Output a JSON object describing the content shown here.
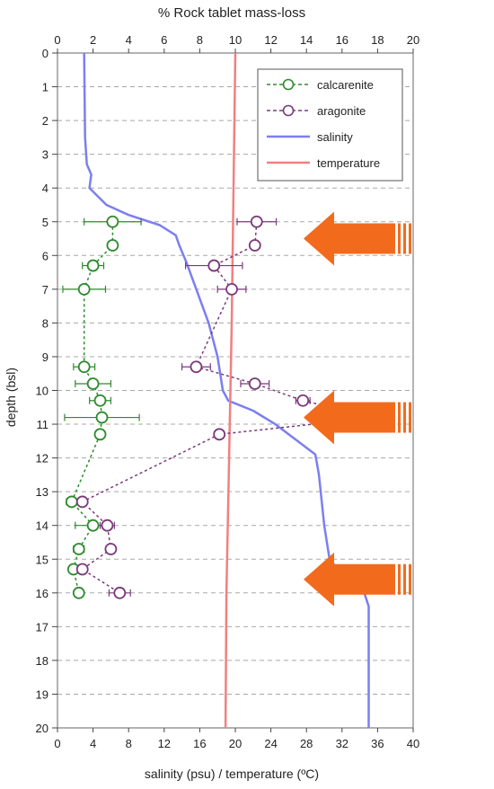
{
  "chart_data": {
    "type": "scatter",
    "top_axis": {
      "label": "% Rock tablet mass-loss",
      "range": [
        0,
        20
      ],
      "ticks": [
        "0",
        "2",
        "4",
        "6",
        "8",
        "10",
        "12",
        "14",
        "16",
        "18",
        "20"
      ]
    },
    "bottom_axis": {
      "label": "salinity (psu) / temperature (ºC)",
      "range": [
        0,
        40
      ],
      "ticks": [
        "0",
        "4",
        "8",
        "12",
        "16",
        "20",
        "24",
        "28",
        "32",
        "36",
        "40"
      ]
    },
    "y_axis": {
      "label": "depth (bsl)",
      "range": [
        0,
        20
      ],
      "reversed": true,
      "ticks": [
        "0",
        "1",
        "2",
        "3",
        "4",
        "5",
        "6",
        "7",
        "8",
        "9",
        "10",
        "11",
        "12",
        "13",
        "14",
        "15",
        "16",
        "17",
        "18",
        "19",
        "20"
      ]
    },
    "grid": "horizontal dashed",
    "legend_position": "top-right",
    "series": [
      {
        "name": "calcarenite",
        "color": "#2e8b2e",
        "axis": "top",
        "style": "dashed-circle",
        "points": [
          {
            "depth": 5.0,
            "value": 3.1,
            "err": 1.6
          },
          {
            "depth": 5.7,
            "value": 3.1,
            "err": 0.2
          },
          {
            "depth": 6.3,
            "value": 2.0,
            "err": 0.6
          },
          {
            "depth": 7.0,
            "value": 1.5,
            "err": 1.2
          },
          {
            "depth": 9.3,
            "value": 1.5,
            "err": 0.6
          },
          {
            "depth": 9.8,
            "value": 2.0,
            "err": 1.0
          },
          {
            "depth": 10.3,
            "value": 2.4,
            "err": 0.6
          },
          {
            "depth": 10.8,
            "value": 2.5,
            "err": 2.1
          },
          {
            "depth": 11.3,
            "value": 2.4,
            "err": 0.2
          },
          {
            "depth": 13.3,
            "value": 0.8,
            "err": 0.3
          },
          {
            "depth": 14.0,
            "value": 2.0,
            "err": 1.0
          },
          {
            "depth": 14.7,
            "value": 1.2,
            "err": 0.3
          },
          {
            "depth": 15.3,
            "value": 0.9,
            "err": 0.2
          },
          {
            "depth": 16.0,
            "value": 1.2,
            "err": 0.2
          }
        ]
      },
      {
        "name": "aragonite",
        "color": "#7b3a7b",
        "axis": "top",
        "style": "dashed-circle",
        "points": [
          {
            "depth": 5.0,
            "value": 11.2,
            "err": 1.1
          },
          {
            "depth": 5.7,
            "value": 11.1,
            "err": 0.2
          },
          {
            "depth": 6.3,
            "value": 8.8,
            "err": 1.6
          },
          {
            "depth": 7.0,
            "value": 9.8,
            "err": 0.8
          },
          {
            "depth": 9.3,
            "value": 7.8,
            "err": 0.8
          },
          {
            "depth": 9.8,
            "value": 11.1,
            "err": 0.8
          },
          {
            "depth": 10.3,
            "value": 13.8,
            "err": 0.4
          },
          {
            "depth": 10.8,
            "value": 17.9,
            "err": 0.6
          },
          {
            "depth": 11.3,
            "value": 9.1,
            "err": 0.2
          },
          {
            "depth": 13.3,
            "value": 1.4,
            "err": 0.2
          },
          {
            "depth": 14.0,
            "value": 2.8,
            "err": 0.4
          },
          {
            "depth": 14.7,
            "value": 3.0,
            "err": 0.2
          },
          {
            "depth": 15.3,
            "value": 1.4,
            "err": 0.2
          },
          {
            "depth": 16.0,
            "value": 3.5,
            "err": 0.6
          }
        ]
      },
      {
        "name": "salinity",
        "color": "#7b7ff0",
        "axis": "bottom",
        "style": "line",
        "points": [
          {
            "depth": 0.0,
            "value": 3.0
          },
          {
            "depth": 2.5,
            "value": 3.1
          },
          {
            "depth": 3.3,
            "value": 3.3
          },
          {
            "depth": 3.6,
            "value": 3.8
          },
          {
            "depth": 4.0,
            "value": 3.6
          },
          {
            "depth": 4.5,
            "value": 5.5
          },
          {
            "depth": 4.8,
            "value": 8.0
          },
          {
            "depth": 5.1,
            "value": 11.5
          },
          {
            "depth": 5.4,
            "value": 13.3
          },
          {
            "depth": 5.7,
            "value": 13.7
          },
          {
            "depth": 6.2,
            "value": 14.5
          },
          {
            "depth": 8.0,
            "value": 17.0
          },
          {
            "depth": 9.0,
            "value": 18.0
          },
          {
            "depth": 10.0,
            "value": 18.6
          },
          {
            "depth": 10.3,
            "value": 19.2
          },
          {
            "depth": 10.6,
            "value": 22.0
          },
          {
            "depth": 11.0,
            "value": 24.5
          },
          {
            "depth": 11.5,
            "value": 27.0
          },
          {
            "depth": 11.9,
            "value": 29.0
          },
          {
            "depth": 12.5,
            "value": 29.4
          },
          {
            "depth": 14.0,
            "value": 30.0
          },
          {
            "depth": 15.0,
            "value": 30.6
          },
          {
            "depth": 15.6,
            "value": 32.5
          },
          {
            "depth": 16.0,
            "value": 34.5
          },
          {
            "depth": 16.4,
            "value": 35.0
          },
          {
            "depth": 20.0,
            "value": 35.0
          }
        ]
      },
      {
        "name": "temperature",
        "color": "#f08080",
        "axis": "bottom",
        "style": "line",
        "points": [
          {
            "depth": 0.0,
            "value": 20.0
          },
          {
            "depth": 4.0,
            "value": 19.8
          },
          {
            "depth": 8.0,
            "value": 19.6
          },
          {
            "depth": 12.0,
            "value": 19.3
          },
          {
            "depth": 16.0,
            "value": 19.0
          },
          {
            "depth": 20.0,
            "value": 18.9
          }
        ]
      }
    ],
    "annotations": [
      {
        "type": "arrow",
        "color": "#f26b1d",
        "pointing": "left",
        "depth": 5.5
      },
      {
        "type": "arrow",
        "color": "#f26b1d",
        "pointing": "left",
        "depth": 10.8
      },
      {
        "type": "arrow",
        "color": "#f26b1d",
        "pointing": "left",
        "depth": 15.6
      }
    ]
  }
}
